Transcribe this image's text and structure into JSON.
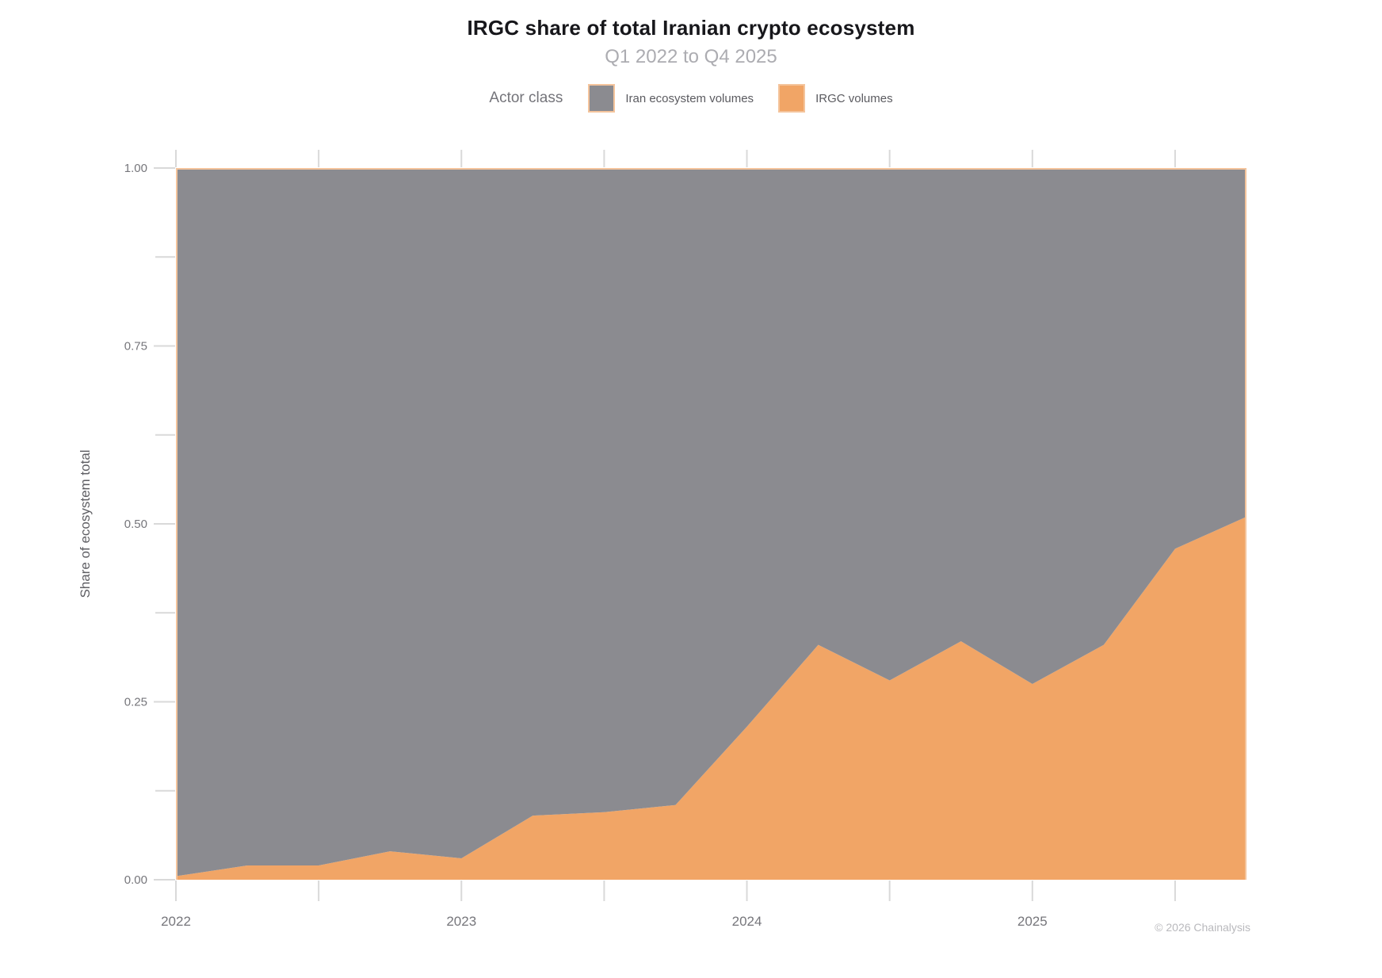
{
  "title": "IRGC share of total Iranian crypto ecosystem",
  "subtitle": "Q1 2022 to Q4 2025",
  "legend": {
    "title": "Actor class",
    "items": [
      {
        "label": "Iran ecosystem volumes",
        "color": "#8b8b90"
      },
      {
        "label": "IRGC volumes",
        "color": "#f1a566"
      }
    ]
  },
  "footer": "© 2026 Chainalysis",
  "chart_data": {
    "type": "area",
    "stacked": true,
    "normalized_total": 1.0,
    "title": "IRGC share of total Iranian crypto ecosystem",
    "subtitle": "Q1 2022 to Q4 2025",
    "ylabel": "Share of ecosystem total",
    "ylim": [
      0,
      1
    ],
    "grid": false,
    "legend_position": "top",
    "outline_color": "#f4c49c",
    "categories": [
      "2022 Q1",
      "2022 Q2",
      "2022 Q3",
      "2022 Q4",
      "2023 Q1",
      "2023 Q2",
      "2023 Q3",
      "2023 Q4",
      "2024 Q1",
      "2024 Q2",
      "2024 Q3",
      "2024 Q4",
      "2025 Q1",
      "2025 Q2",
      "2025 Q3",
      "2025 Q4"
    ],
    "series": [
      {
        "name": "IRGC volumes",
        "color": "#f1a566",
        "values": [
          0.005,
          0.02,
          0.02,
          0.04,
          0.03,
          0.09,
          0.095,
          0.105,
          0.215,
          0.33,
          0.28,
          0.335,
          0.275,
          0.33,
          0.465,
          0.51
        ]
      },
      {
        "name": "Iran ecosystem volumes",
        "color": "#8b8b90",
        "values": [
          0.995,
          0.98,
          0.98,
          0.96,
          0.97,
          0.91,
          0.905,
          0.895,
          0.785,
          0.67,
          0.72,
          0.665,
          0.725,
          0.67,
          0.535,
          0.49
        ]
      }
    ],
    "axes": {
      "y_major_ticks": [
        0,
        0.25,
        0.5,
        0.75,
        1.0
      ],
      "y_major_labels": [
        "0.00",
        "0.25",
        "0.50",
        "0.75",
        "1.00"
      ],
      "y_minor_ticks": [
        0.125,
        0.375,
        0.625,
        0.875
      ],
      "x_major_labels": [
        "2022",
        "2023",
        "2024",
        "2025"
      ],
      "x_major_indices": [
        0,
        4,
        8,
        12
      ],
      "x_minor_indices": [
        2,
        6,
        10,
        14
      ],
      "tick_color": "#d9d9d9",
      "label_color": "#76767b"
    }
  }
}
